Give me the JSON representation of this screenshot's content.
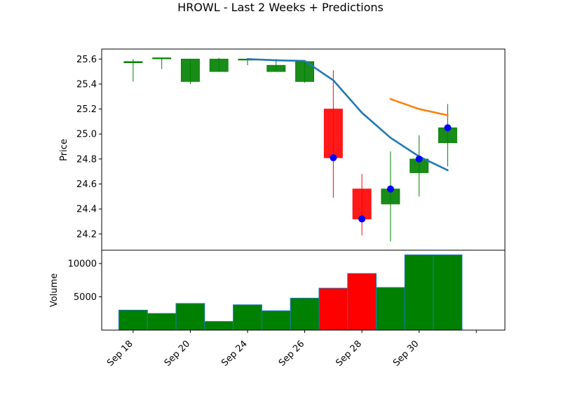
{
  "chart_data": {
    "type": "candlestick",
    "title": "HROWL - Last 2 Weeks + Predictions",
    "price_ylabel": "Price",
    "volume_ylabel": "Volume",
    "price_ylim": [
      24.07,
      25.68
    ],
    "price_yticks": [
      24.2,
      24.4,
      24.6,
      24.8,
      25.0,
      25.2,
      25.4,
      25.6
    ],
    "volume_ylim": [
      0,
      12000
    ],
    "volume_yticks": [
      5000,
      10000
    ],
    "xlim": [
      -1.1,
      13
    ],
    "xticks": [
      {
        "pos": 0,
        "label": "Sep 18"
      },
      {
        "pos": 2,
        "label": "Sep 20"
      },
      {
        "pos": 4,
        "label": "Sep 24"
      },
      {
        "pos": 6,
        "label": "Sep 26"
      },
      {
        "pos": 8,
        "label": "Sep 28"
      },
      {
        "pos": 10,
        "label": "Sep 30"
      },
      {
        "pos": 12,
        "label": ""
      }
    ],
    "candles": [
      {
        "x": 0,
        "open": 25.57,
        "close": 25.58,
        "high": 25.6,
        "low": 25.42,
        "volume": 3000
      },
      {
        "x": 1,
        "open": 25.61,
        "close": 25.61,
        "high": 25.61,
        "low": 25.52,
        "volume": 2500
      },
      {
        "x": 2,
        "open": 25.42,
        "close": 25.6,
        "high": 25.6,
        "low": 25.4,
        "volume": 4000
      },
      {
        "x": 3,
        "open": 25.5,
        "close": 25.6,
        "high": 25.61,
        "low": 25.5,
        "volume": 1300
      },
      {
        "x": 4,
        "open": 25.6,
        "close": 25.6,
        "high": 25.6,
        "low": 25.55,
        "volume": 3800
      },
      {
        "x": 5,
        "open": 25.5,
        "close": 25.55,
        "high": 25.6,
        "low": 25.5,
        "volume": 2900
      },
      {
        "x": 6,
        "open": 25.42,
        "close": 25.58,
        "high": 25.59,
        "low": 25.41,
        "volume": 4800
      },
      {
        "x": 7,
        "open": 25.2,
        "close": 24.81,
        "high": 25.51,
        "low": 24.49,
        "volume": 6300
      },
      {
        "x": 8,
        "open": 24.56,
        "close": 24.32,
        "high": 24.68,
        "low": 24.19,
        "volume": 8500
      },
      {
        "x": 9,
        "open": 24.44,
        "close": 24.56,
        "high": 24.86,
        "low": 24.14,
        "volume": 6400
      },
      {
        "x": 10,
        "open": 24.69,
        "close": 24.8,
        "high": 24.99,
        "low": 24.5,
        "volume": 11300
      },
      {
        "x": 11,
        "open": 24.93,
        "close": 25.05,
        "high": 25.24,
        "low": 24.74,
        "volume": 11300
      }
    ],
    "markers": [
      {
        "x": 7,
        "y": 24.81
      },
      {
        "x": 8,
        "y": 24.32
      },
      {
        "x": 9,
        "y": 24.56
      },
      {
        "x": 10,
        "y": 24.8
      },
      {
        "x": 11,
        "y": 25.05
      }
    ],
    "series": [
      {
        "color": "#1f77b4",
        "x": [
          4,
          5,
          6,
          7,
          8,
          9,
          10,
          11
        ],
        "y": [
          25.6,
          25.59,
          25.585,
          25.43,
          25.17,
          24.97,
          24.82,
          24.71
        ]
      },
      {
        "color": "#ff7f0e",
        "x": [
          9,
          10,
          11
        ],
        "y": [
          25.28,
          25.2,
          25.15
        ]
      }
    ],
    "colors": {
      "up": "#008000",
      "down": "#ff0000",
      "marker": "#0000ff",
      "volume_edge": "#1f77b4"
    }
  }
}
